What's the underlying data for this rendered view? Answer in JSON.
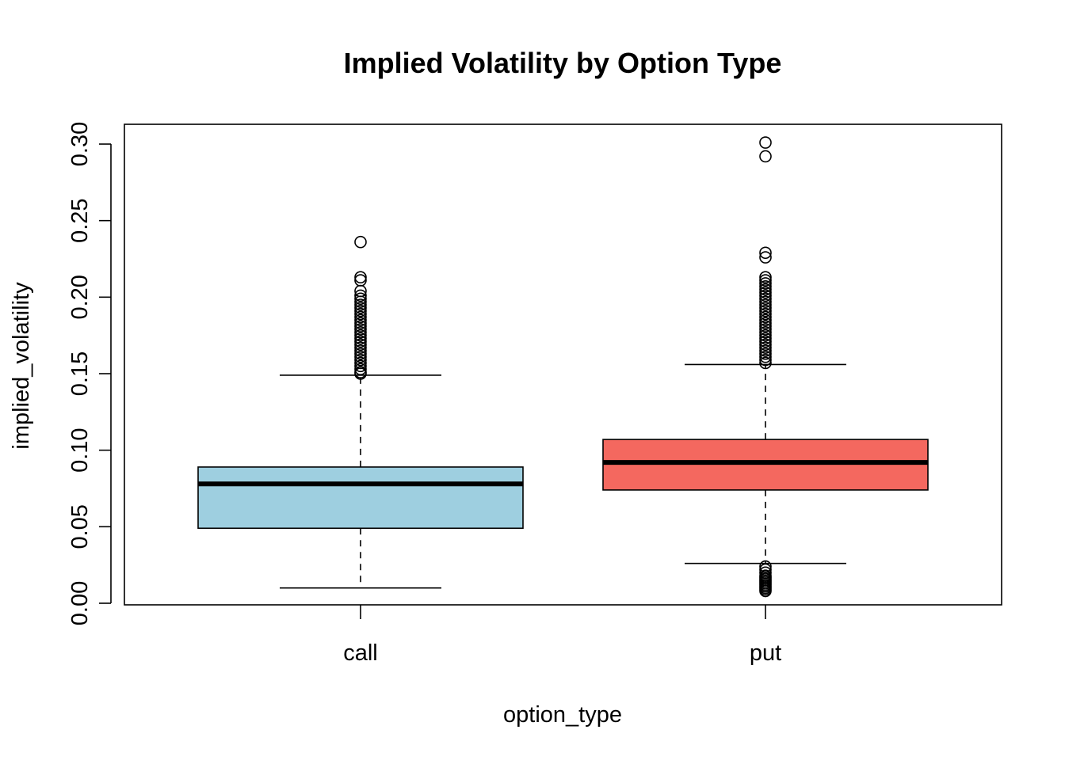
{
  "chart_data": {
    "type": "boxplot",
    "title": "Implied Volatility by Option Type",
    "xlabel": "option_type",
    "ylabel": "implied_volatility",
    "ylim": [
      0.0,
      0.31
    ],
    "y_ticks": [
      "0.00",
      "0.05",
      "0.10",
      "0.15",
      "0.20",
      "0.25",
      "0.30"
    ],
    "y_tick_values": [
      0.0,
      0.05,
      0.1,
      0.15,
      0.2,
      0.25,
      0.3
    ],
    "categories": [
      "call",
      "put"
    ],
    "grid": false,
    "series": [
      {
        "category": "call",
        "color": "#9ecfe0",
        "whisker_low": 0.01,
        "q1": 0.049,
        "median": 0.078,
        "q3": 0.089,
        "whisker_high": 0.149,
        "outliers": [
          0.15,
          0.151,
          0.153,
          0.155,
          0.157,
          0.159,
          0.161,
          0.163,
          0.165,
          0.167,
          0.169,
          0.171,
          0.173,
          0.175,
          0.177,
          0.179,
          0.181,
          0.183,
          0.185,
          0.187,
          0.189,
          0.191,
          0.193,
          0.195,
          0.197,
          0.199,
          0.201,
          0.204,
          0.211,
          0.213,
          0.236
        ]
      },
      {
        "category": "put",
        "color": "#f4685f",
        "whisker_low": 0.026,
        "q1": 0.074,
        "median": 0.092,
        "q3": 0.107,
        "whisker_high": 0.156,
        "outliers": [
          0.008,
          0.009,
          0.01,
          0.011,
          0.012,
          0.013,
          0.014,
          0.015,
          0.016,
          0.017,
          0.018,
          0.02,
          0.022,
          0.024,
          0.157,
          0.159,
          0.161,
          0.163,
          0.165,
          0.167,
          0.169,
          0.171,
          0.173,
          0.175,
          0.177,
          0.179,
          0.181,
          0.183,
          0.185,
          0.187,
          0.189,
          0.191,
          0.193,
          0.195,
          0.197,
          0.199,
          0.201,
          0.203,
          0.205,
          0.207,
          0.209,
          0.211,
          0.213,
          0.226,
          0.229,
          0.292,
          0.301
        ]
      }
    ]
  }
}
